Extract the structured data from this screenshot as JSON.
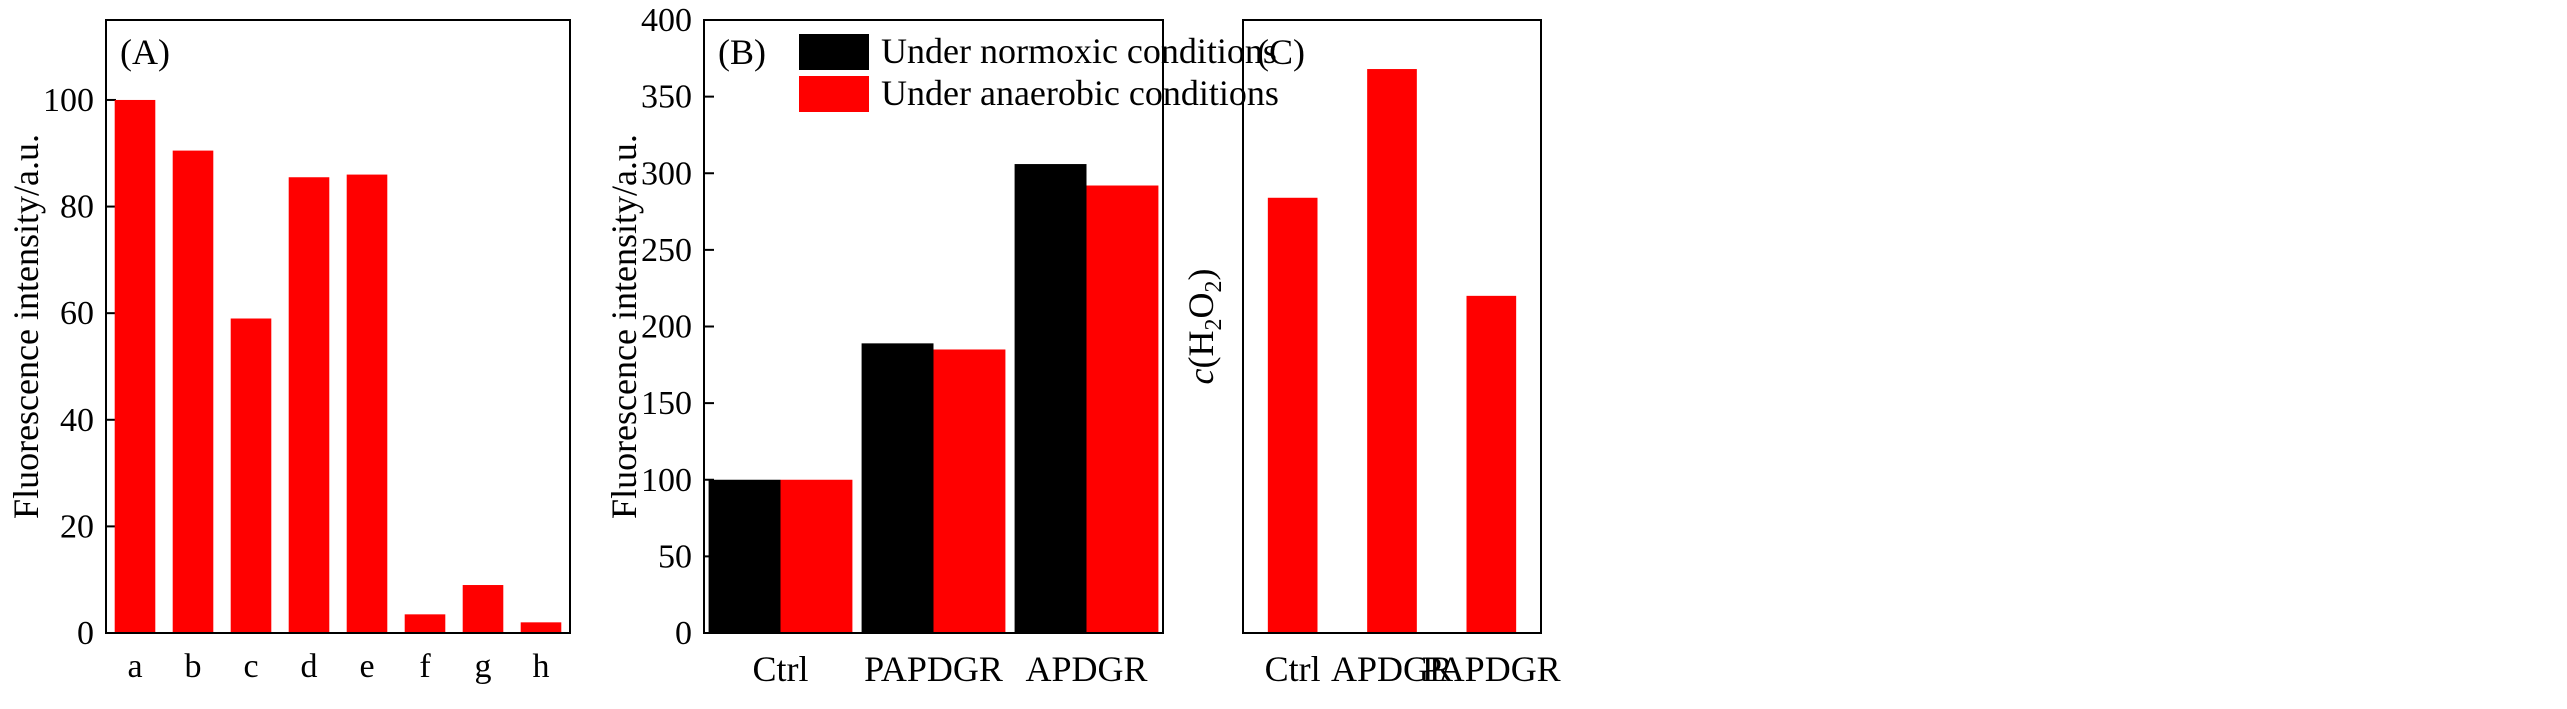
{
  "chart_data": [
    {
      "panel": "(A)",
      "type": "bar",
      "title": "",
      "xlabel": "",
      "ylabel": "Fluorescence intensity/a.u.",
      "categories": [
        "a",
        "b",
        "c",
        "d",
        "e",
        "f",
        "g",
        "h"
      ],
      "values": [
        100,
        90.5,
        59,
        85.5,
        86,
        3.5,
        9,
        2
      ],
      "ylim": [
        0,
        115
      ],
      "yticks": [
        0,
        20,
        40,
        60,
        80,
        100
      ],
      "color": "#ff0000"
    },
    {
      "panel": "(B)",
      "type": "bar",
      "title": "",
      "xlabel": "",
      "ylabel": "Fluorescence intensity/a.u.",
      "categories": [
        "Ctrl",
        "PAPDGR",
        "APDGR"
      ],
      "series": [
        {
          "name": "Under normoxic conditions",
          "values": [
            100,
            189,
            306
          ],
          "color": "#000000"
        },
        {
          "name": "Under anaerobic conditions",
          "values": [
            100,
            185,
            292
          ],
          "color": "#ff0000"
        }
      ],
      "ylim": [
        0,
        400
      ],
      "yticks": [
        0,
        50,
        100,
        150,
        200,
        250,
        300,
        350,
        400
      ],
      "legend": "top-right"
    },
    {
      "panel": "(C)",
      "type": "bar",
      "title": "",
      "xlabel": "",
      "ylabel": "c(H2O2)",
      "ylabel_parts": {
        "italic": "c",
        "open": "(H",
        "sub1": "2",
        "mid": "O",
        "sub2": "2",
        "close": ")"
      },
      "categories": [
        "Ctrl",
        "APDGR",
        "PAPDGR"
      ],
      "values": [
        0.71,
        0.92,
        0.55
      ],
      "ylim": [
        0,
        1
      ],
      "yticks": [],
      "color": "#ff0000"
    }
  ]
}
